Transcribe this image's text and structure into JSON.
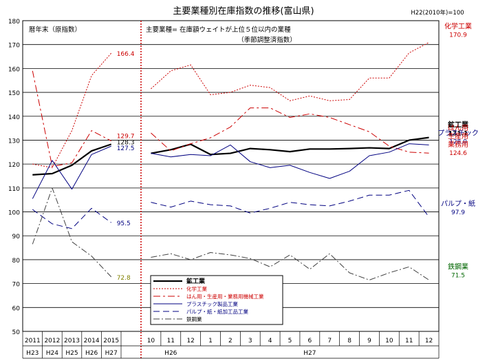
{
  "chart_data": {
    "type": "line",
    "title": "主要業種別在庫指数の推移(富山県)",
    "base_note": "H22(2010年)=100",
    "left_panel_label": "暦年末（原指数）",
    "right_panel_label": "主要業種= 在庫額ウェイトが上位５位以内の業種",
    "right_panel_sublabel": "（季節調整済指数）",
    "ylim": [
      50,
      180
    ],
    "yticks": [
      "180",
      "170",
      "160",
      "150",
      "140",
      "130",
      "120",
      "110",
      "100",
      "90",
      "80",
      "70",
      "60",
      "50"
    ],
    "annual_x": [
      "2011",
      "2012",
      "2013",
      "2014",
      "2015"
    ],
    "annual_era": [
      "H23",
      "H24",
      "H25",
      "H26",
      "H27"
    ],
    "monthly_x": [
      "10",
      "11",
      "12",
      "1",
      "2",
      "3",
      "4",
      "5",
      "6",
      "7",
      "8",
      "9",
      "10",
      "11",
      "12"
    ],
    "monthly_era": [
      "H26",
      "H27"
    ],
    "series": [
      {
        "key": "kou",
        "name": "鉱工業",
        "color": "#000000",
        "width": 2.2,
        "dash": "",
        "annual": [
          115.5,
          116.0,
          119.5,
          125.5,
          128.3
        ],
        "monthly": [
          124.5,
          126.0,
          128.3,
          124.0,
          124.5,
          126.5,
          126.0,
          125.2,
          126.3,
          126.3,
          126.5,
          126.8,
          126.5,
          130.0,
          131.1
        ]
      },
      {
        "key": "kagaku",
        "name": "化学工業",
        "color": "#cc0000",
        "width": 1,
        "dash": "2,2",
        "annual": [
          120.0,
          118.5,
          134.0,
          157.0,
          166.4
        ],
        "monthly": [
          151.5,
          159.0,
          161.5,
          149.0,
          150.0,
          153.0,
          152.0,
          146.5,
          148.5,
          146.5,
          147.0,
          156.0,
          156.0,
          166.5,
          170.9
        ]
      },
      {
        "key": "hanyou",
        "name": "はん用・生産用・業務用機械工業",
        "color": "#cc0000",
        "width": 1,
        "dash": "10,4,3,4",
        "annual": [
          159.0,
          119.0,
          120.5,
          134.0,
          129.7
        ],
        "monthly": [
          133.0,
          125.5,
          128.5,
          131.0,
          135.5,
          143.5,
          143.5,
          139.5,
          141.0,
          139.5,
          136.5,
          133.5,
          127.5,
          125.0,
          124.6
        ]
      },
      {
        "key": "plastic",
        "name": "プラスチック製品工業",
        "color": "#000080",
        "width": 1,
        "dash": "",
        "annual": [
          105.5,
          121.5,
          109.5,
          124.0,
          127.5
        ],
        "monthly": [
          124.5,
          123.0,
          124.0,
          123.5,
          128.0,
          121.0,
          118.5,
          119.5,
          116.5,
          114.0,
          117.0,
          123.5,
          125.0,
          128.5,
          128.0
        ]
      },
      {
        "key": "pulp",
        "name": "パルプ・紙・紙加工品工業",
        "color": "#000080",
        "width": 1,
        "dash": "9,5",
        "annual": [
          101.0,
          95.0,
          93.0,
          101.5,
          95.5
        ],
        "monthly": [
          104.0,
          102.0,
          104.5,
          103.0,
          102.5,
          99.5,
          101.5,
          104.0,
          103.0,
          102.5,
          104.5,
          107.0,
          107.0,
          109.0,
          97.9
        ]
      },
      {
        "key": "tekkou",
        "name": "鉄鋼業",
        "color": "#404040",
        "width": 1,
        "dash": "9,3,2,3",
        "annual": [
          86.5,
          110.0,
          87.5,
          81.5,
          72.8
        ],
        "monthly": [
          81.0,
          82.5,
          80.0,
          83.0,
          82.0,
          80.5,
          77.0,
          82.0,
          76.0,
          82.5,
          74.5,
          71.5,
          74.5,
          77.0,
          71.5
        ]
      }
    ],
    "annual_end_labels": [
      {
        "key": "kagaku",
        "text": "166.4",
        "color": "#cc0000"
      },
      {
        "key": "hanyou",
        "text": "129.7",
        "color": "#cc0000"
      },
      {
        "key": "kou",
        "text": "128.3",
        "color": "#000000"
      },
      {
        "key": "plastic",
        "text": "127.5",
        "color": "#000080"
      },
      {
        "key": "pulp",
        "text": "95.5",
        "color": "#000080"
      },
      {
        "key": "tekkou",
        "text": "72.8",
        "color": "#808000"
      }
    ],
    "right_labels": [
      {
        "key": "kagaku",
        "lines": [
          "化学工業",
          "170.9"
        ],
        "color": "#cc0000",
        "bold": false
      },
      {
        "key": "kou",
        "lines": [
          "鉱工業",
          "131.1"
        ],
        "color": "#000000",
        "bold": true
      },
      {
        "key": "plastic",
        "lines": [
          "プラスチック",
          "128.0"
        ],
        "color": "#000080",
        "bold": false
      },
      {
        "key": "hanyou",
        "lines": [
          "はん用",
          "生産用",
          "業務用",
          "124.6"
        ],
        "color": "#cc0000",
        "bold": false
      },
      {
        "key": "pulp",
        "lines": [
          "パルプ・紙",
          "97.9"
        ],
        "color": "#000080",
        "bold": false
      },
      {
        "key": "tekkou",
        "lines": [
          "鉄鋼業",
          "71.5"
        ],
        "color": "#006600",
        "bold": false
      }
    ],
    "legend": [
      "鉱工業",
      "化学工業",
      "はん用・生産用・業務用機械工業",
      "プラスチック製品工業",
      "パルプ・紙・紙加工品工業",
      "鉄鋼業"
    ],
    "grid": true,
    "legend_position": "bottom-center"
  }
}
